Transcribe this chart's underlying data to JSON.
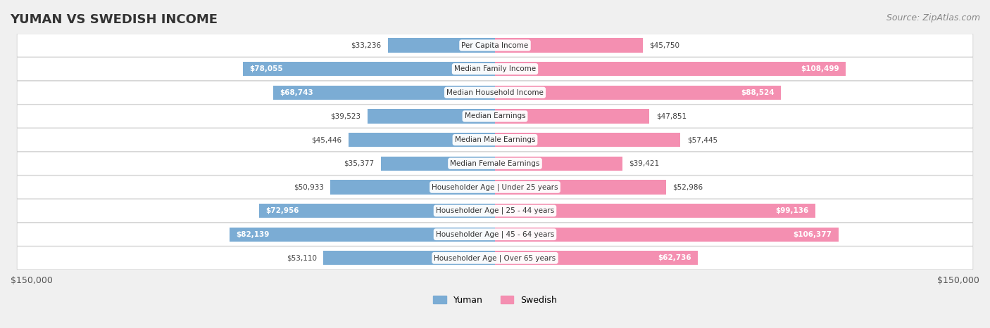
{
  "title": "YUMAN VS SWEDISH INCOME",
  "source": "Source: ZipAtlas.com",
  "categories": [
    "Per Capita Income",
    "Median Family Income",
    "Median Household Income",
    "Median Earnings",
    "Median Male Earnings",
    "Median Female Earnings",
    "Householder Age | Under 25 years",
    "Householder Age | 25 - 44 years",
    "Householder Age | 45 - 64 years",
    "Householder Age | Over 65 years"
  ],
  "yuman_values": [
    33236,
    78055,
    68743,
    39523,
    45446,
    35377,
    50933,
    72956,
    82139,
    53110
  ],
  "swedish_values": [
    45750,
    108499,
    88524,
    47851,
    57445,
    39421,
    52986,
    99136,
    106377,
    62736
  ],
  "yuman_labels": [
    "$33,236",
    "$78,055",
    "$68,743",
    "$39,523",
    "$45,446",
    "$35,377",
    "$50,933",
    "$72,956",
    "$82,139",
    "$53,110"
  ],
  "swedish_labels": [
    "$45,750",
    "$108,499",
    "$88,524",
    "$47,851",
    "$57,445",
    "$39,421",
    "$52,986",
    "$99,136",
    "$106,377",
    "$62,736"
  ],
  "yuman_color": "#7bacd4",
  "yuman_color_dark": "#5b8fbf",
  "swedish_color": "#f48fb1",
  "swedish_color_dark": "#e05c8a",
  "max_value": 150000,
  "bg_color": "#f0f0f0",
  "row_bg": "#f7f7f7",
  "label_color_high": "#ffffff",
  "label_color_low": "#555555",
  "threshold": 60000,
  "legend_yuman": "Yuman",
  "legend_swedish": "Swedish"
}
